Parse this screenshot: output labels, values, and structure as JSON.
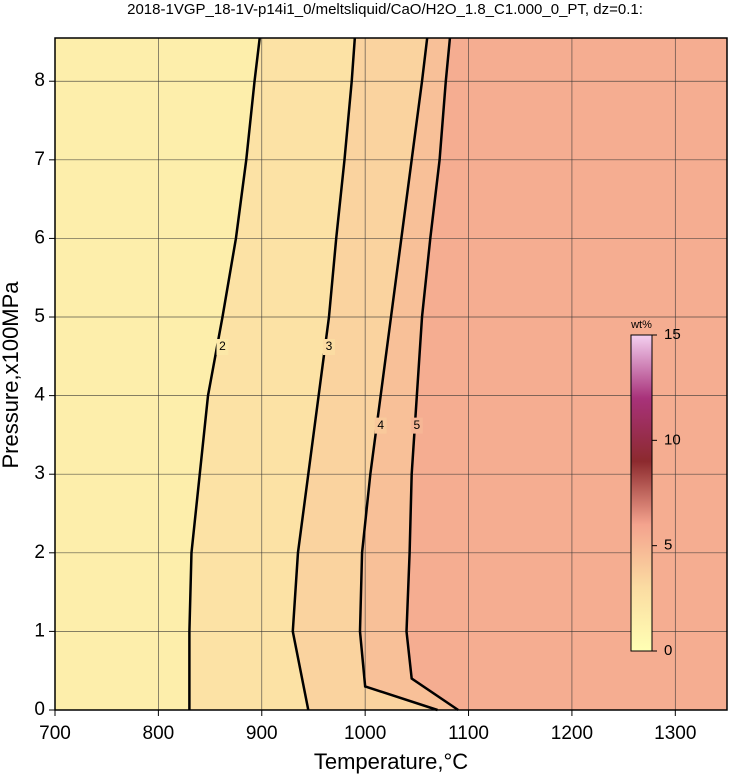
{
  "chart_data": {
    "type": "contour",
    "title": "2018-1VGP_18-1V-p14i1_0/meltsliquid/CaO/H2O_1.8_C1.000_0_PT, dz=0.1:",
    "xlabel": "Temperature,°C",
    "ylabel": "Pressure,x100MPa",
    "xlim": [
      700,
      1350
    ],
    "ylim": [
      0,
      8.55
    ],
    "xticks": [
      700,
      800,
      900,
      1000,
      1100,
      1200,
      1300
    ],
    "yticks": [
      0,
      1,
      2,
      3,
      4,
      5,
      6,
      7,
      8
    ],
    "grid": true,
    "series": [
      {
        "level": 2,
        "x": [
          830,
          830,
          832,
          840,
          848,
          862,
          875,
          885,
          893,
          898
        ],
        "y": [
          0,
          1,
          2,
          3,
          4,
          5,
          6,
          7,
          8,
          8.55
        ]
      },
      {
        "level": 3,
        "x": [
          945,
          930,
          935,
          945,
          955,
          965,
          972,
          980,
          987,
          990
        ],
        "y": [
          0,
          1,
          2,
          3,
          4,
          5,
          6,
          7,
          8,
          8.55
        ]
      },
      {
        "level": 4,
        "x": [
          1070,
          1000,
          995,
          997,
          1005,
          1015,
          1025,
          1035,
          1045,
          1055,
          1060
        ],
        "y": [
          0,
          0.3,
          1,
          2,
          3,
          4,
          5,
          6,
          7,
          8,
          8.55
        ]
      },
      {
        "level": 5,
        "x": [
          1090,
          1045,
          1040,
          1043,
          1045,
          1050,
          1055,
          1063,
          1072,
          1078,
          1082
        ],
        "y": [
          0,
          0.4,
          1,
          2,
          3,
          4,
          5,
          6,
          7,
          8,
          8.55
        ]
      }
    ],
    "colorbar": {
      "label": "wt%",
      "clim": [
        0,
        15
      ],
      "ticks": [
        0,
        5,
        10,
        15
      ],
      "colormap": [
        "#ffffb4",
        "#fbdca2",
        "#f4a38e",
        "#8c2a2e",
        "#a8327a",
        "#f4d0f0"
      ]
    }
  }
}
